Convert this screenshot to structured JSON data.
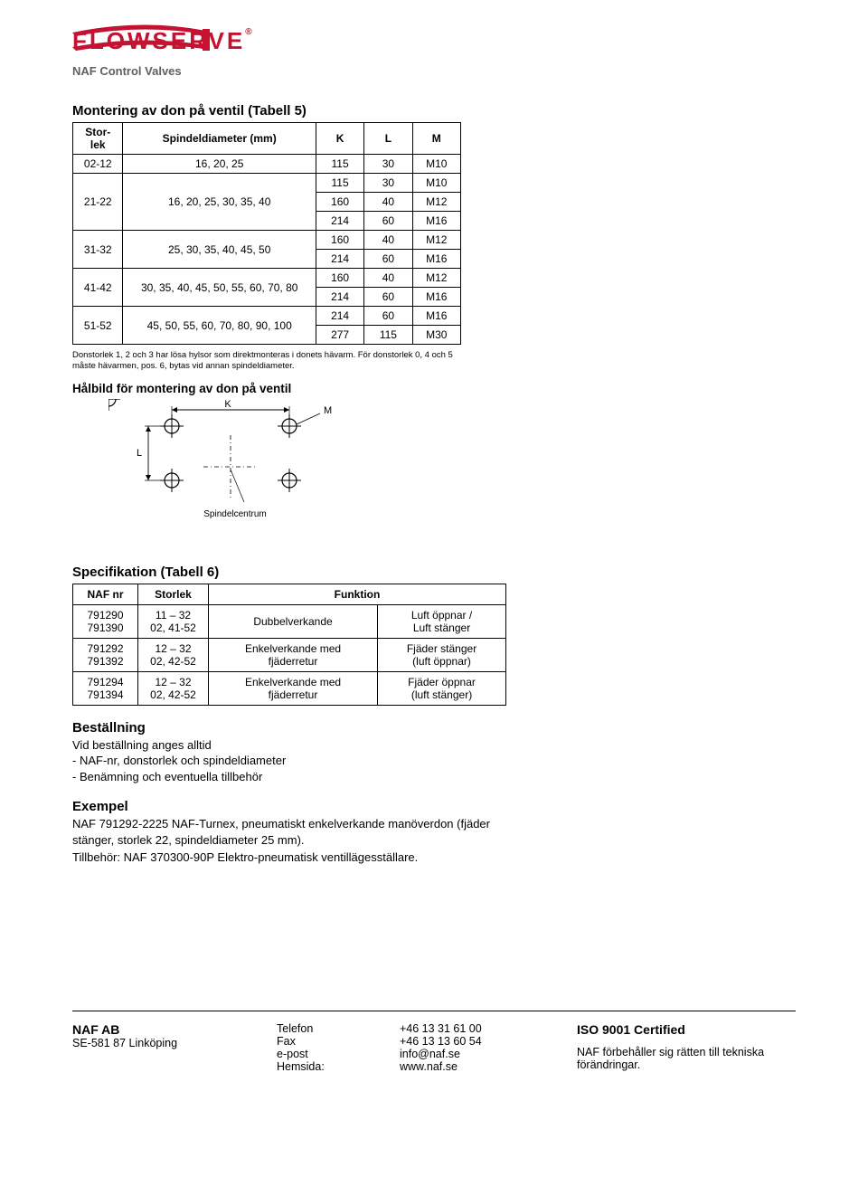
{
  "logo": {
    "brand": "FLOWSERVE",
    "registered": "®",
    "subtitle": "NAF Control Valves",
    "brand_color": "#c41230",
    "sub_color": "#5f5f5f"
  },
  "table5": {
    "title": "Montering av don på ventil (Tabell 5)",
    "headers": {
      "storlek": "Stor-\nlek",
      "spindel": "Spindeldiameter (mm)",
      "K": "K",
      "L": "L",
      "M": "M"
    },
    "rows": [
      {
        "storlek": "02-12",
        "dia": "16, 20, 25",
        "K": "115",
        "L": "30",
        "M": "M10",
        "merge_storlek": 1,
        "merge_dia": 1
      },
      {
        "storlek": "21-22",
        "dia": "16, 20, 25, 30, 35, 40",
        "K": "115",
        "L": "30",
        "M": "M10",
        "merge_storlek": 3,
        "merge_dia": 3
      },
      {
        "K": "160",
        "L": "40",
        "M": "M12"
      },
      {
        "K": "214",
        "L": "60",
        "M": "M16"
      },
      {
        "storlek": "31-32",
        "dia": "25, 30, 35, 40, 45, 50",
        "K": "160",
        "L": "40",
        "M": "M12",
        "merge_storlek": 2,
        "merge_dia": 2
      },
      {
        "K": "214",
        "L": "60",
        "M": "M16"
      },
      {
        "storlek": "41-42",
        "dia": "30, 35, 40, 45, 50, 55, 60, 70, 80",
        "K": "160",
        "L": "40",
        "M": "M12",
        "merge_storlek": 2,
        "merge_dia": 2
      },
      {
        "K": "214",
        "L": "60",
        "M": "M16"
      },
      {
        "storlek": "51-52",
        "dia": "45, 50, 55, 60, 70, 80, 90, 100",
        "K": "214",
        "L": "60",
        "M": "M16",
        "merge_storlek": 2,
        "merge_dia": 2
      },
      {
        "K": "277",
        "L": "115",
        "M": "M30"
      }
    ],
    "footnote": "Donstorlek 1, 2 och 3 har lösa hylsor som direktmonteras i donets hävarm. För donstorlek 0, 4 och 5 måste hävarmen, pos. 6, bytas vid annan spindeldiameter."
  },
  "diagram": {
    "title": "Hålbild för montering av don på ventil",
    "labels": {
      "K": "K",
      "L": "L",
      "M": "M"
    },
    "caption": "Spindelcentrum"
  },
  "table6": {
    "title": "Specifikation (Tabell 6)",
    "headers": {
      "naf": "NAF nr",
      "storlek": "Storlek",
      "funktion": "Funktion"
    },
    "rows": [
      {
        "naf1": "791290",
        "naf2": "791390",
        "storlek": "11 – 32\n02, 41-52",
        "f1": "Dubbelverkande",
        "f2": "Luft öppnar /\nLuft stänger"
      },
      {
        "naf1": "791292",
        "naf2": "791392",
        "storlek": "12 – 32\n02, 42-52",
        "f1": "Enkelverkande med\nfjäderretur",
        "f2": "Fjäder stänger\n(luft öppnar)"
      },
      {
        "naf1": "791294",
        "naf2": "791394",
        "storlek": "12 – 32\n02, 42-52",
        "f1": "Enkelverkande med\nfjäderretur",
        "f2": "Fjäder öppnar\n(luft stänger)"
      }
    ]
  },
  "ordering": {
    "title": "Beställning",
    "lines": [
      "Vid beställning anges alltid",
      "- NAF-nr, donstorlek och spindeldiameter",
      "- Benämning och eventuella tillbehör"
    ]
  },
  "example": {
    "title": "Exempel",
    "p1": "NAF 791292-2225 NAF-Turnex, pneumatiskt enkelverkande manöverdon (fjäder stänger, storlek 22, spindeldiameter 25 mm).",
    "p2": "Tillbehör: NAF 370300-90P Elektro-pneumatisk ventillägesställare."
  },
  "footer": {
    "company": "NAF  AB",
    "address": "SE-581 87 Linköping",
    "labels": {
      "tel": "Telefon",
      "fax": "Fax",
      "email": "e-post",
      "web": "Hemsida:"
    },
    "values": {
      "tel": "+46 13 31 61 00",
      "fax": "+46 13 13 60 54",
      "email": "info@naf.se",
      "web": "www.naf.se"
    },
    "iso": "ISO 9001 Certified",
    "disclaimer": "NAF förbehåller sig rätten till tekniska förändringar."
  }
}
